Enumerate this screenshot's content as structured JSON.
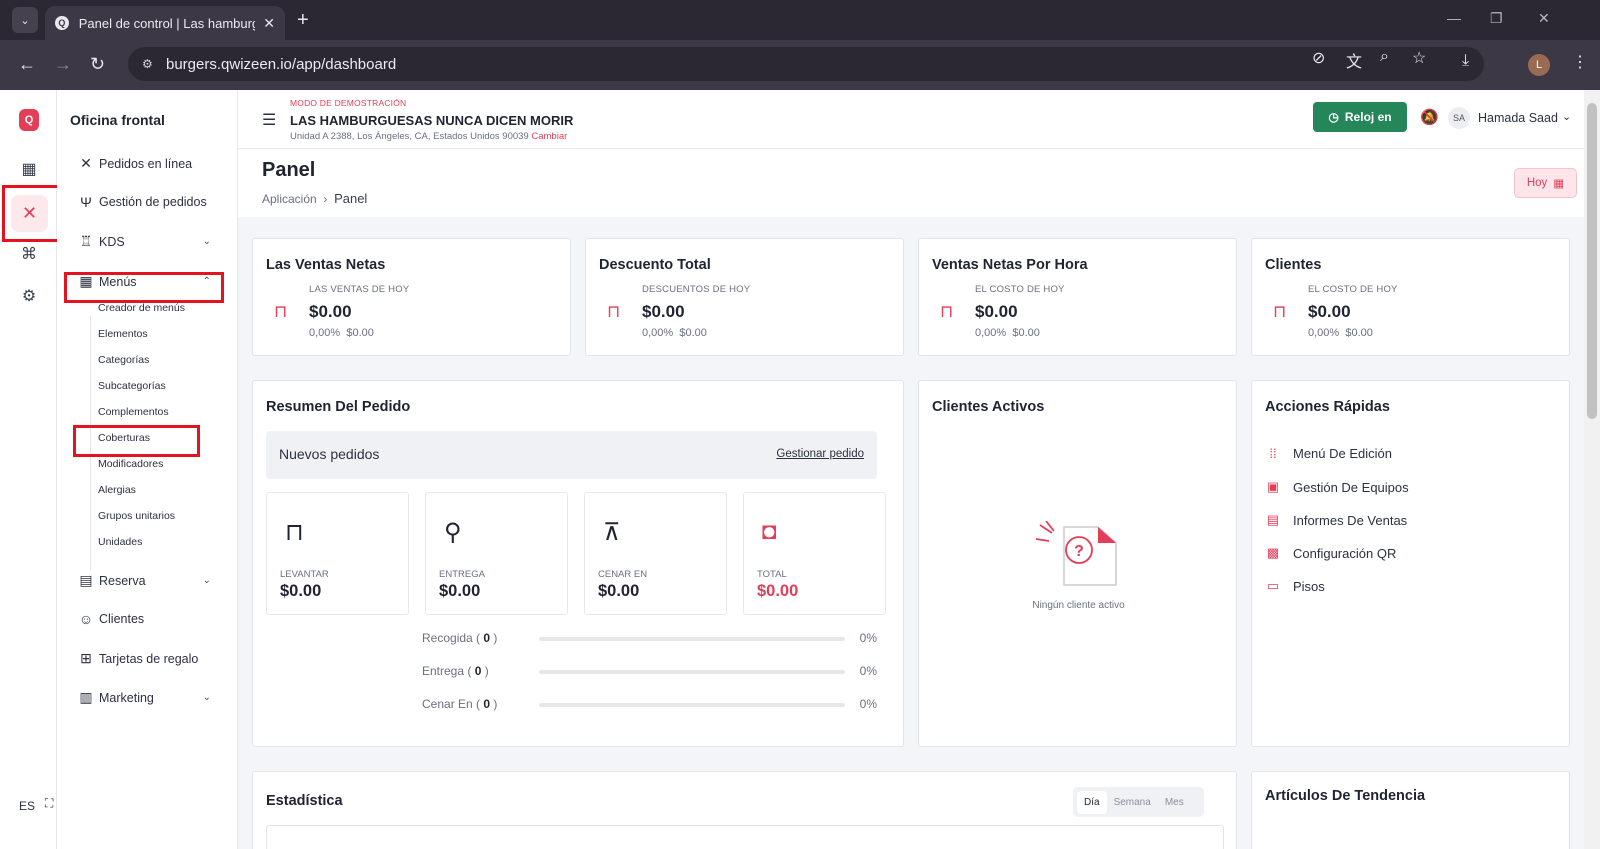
{
  "browser": {
    "tab_title": "Panel de control | Las hamburguesas",
    "url": "burgers.qwizeen.io/app/dashboard",
    "profile_initial": "L"
  },
  "rail": {
    "lang": "ES"
  },
  "sidenav": {
    "title": "Oficina frontal",
    "items": [
      {
        "label": "Pedidos en línea",
        "icon": "fork-knife-icon"
      },
      {
        "label": "Gestión de pedidos",
        "icon": "utensils-icon"
      },
      {
        "label": "KDS",
        "icon": "chef-hat-icon"
      },
      {
        "label": "Menús",
        "icon": "grid-icon"
      },
      {
        "label": "Reserva",
        "icon": "calendar-icon"
      },
      {
        "label": "Clientes",
        "icon": "users-icon"
      },
      {
        "label": "Tarjetas de regalo",
        "icon": "gift-icon"
      },
      {
        "label": "Marketing",
        "icon": "chart-icon"
      }
    ],
    "submenu": [
      "Creador de menús",
      "Elementos",
      "Categorías",
      "Subcategorías",
      "Complementos",
      "Coberturas",
      "Modificadores",
      "Alergias",
      "Grupos unitarios",
      "Unidades"
    ]
  },
  "header": {
    "demo_label": "MODO DE DEMOSTRACIÓN",
    "store_name": "LAS HAMBURGUESAS NUNCA DICEN MORIR",
    "address": "Unidad A 2388, Los Ángeles, CA, Estados Unidos 90039",
    "change_label": "Cambiar",
    "clock_label": "Reloj en",
    "user_initials": "SA",
    "user_name": "Hamada Saad"
  },
  "page": {
    "title": "Panel",
    "crumb_root": "Aplicación",
    "crumb_current": "Panel",
    "today_button": "Hoy"
  },
  "kpis": [
    {
      "title": "Las Ventas Netas",
      "label": "LAS VENTAS DE HOY",
      "value": "$0.00",
      "pct": "0,00%",
      "sub": "$0.00"
    },
    {
      "title": "Descuento Total",
      "label": "DESCUENTOS DE HOY",
      "value": "$0.00",
      "pct": "0,00%",
      "sub": "$0.00"
    },
    {
      "title": "Ventas Netas Por Hora",
      "label": "EL COSTO DE HOY",
      "value": "$0.00",
      "pct": "0,00%",
      "sub": "$0.00"
    },
    {
      "title": "Clientes",
      "label": "EL COSTO DE HOY",
      "value": "$0.00",
      "pct": "0,00%",
      "sub": "$0.00"
    }
  ],
  "order_summary": {
    "title": "Resumen Del Pedido",
    "new_orders": "Nuevos pedidos",
    "manage_link": "Gestionar pedido",
    "tiles": [
      {
        "label": "LEVANTAR",
        "value": "$0.00",
        "icon": "shopping-bag-icon",
        "color": "#1f2430"
      },
      {
        "label": "ENTREGA",
        "value": "$0.00",
        "icon": "bicycle-icon",
        "color": "#1f2430"
      },
      {
        "label": "CENAR EN",
        "value": "$0.00",
        "icon": "picnic-table-icon",
        "color": "#1f2430"
      },
      {
        "label": "TOTAL",
        "value": "$0.00",
        "icon": "money-icon",
        "color": "#e33d57"
      }
    ],
    "progress": [
      {
        "label": "Recogida",
        "count": "0",
        "percent": "0%",
        "fraction": 0
      },
      {
        "label": "Entrega",
        "count": "0",
        "percent": "0%",
        "fraction": 0
      },
      {
        "label": "Cenar En",
        "count": "0",
        "percent": "0%",
        "fraction": 0
      }
    ]
  },
  "active_clients": {
    "title": "Clientes Activos",
    "empty": "Ningún cliente activo"
  },
  "quick_actions": {
    "title": "Acciones Rápidas",
    "items": [
      {
        "label": "Menú De Edición",
        "icon": "grid-dots-icon"
      },
      {
        "label": "Gestión De Equipos",
        "icon": "team-icon"
      },
      {
        "label": "Informes De Ventas",
        "icon": "report-icon"
      },
      {
        "label": "Configuración QR",
        "icon": "qr-icon"
      },
      {
        "label": "Pisos",
        "icon": "floor-icon"
      }
    ]
  },
  "stats": {
    "title": "Estadística",
    "tabs": [
      "Día",
      "Semana",
      "Mes"
    ],
    "active_tab": "Día"
  },
  "trending": {
    "title": "Artículos De Tendencia"
  },
  "colors": {
    "accent": "#e33d57",
    "green": "#25865a"
  }
}
